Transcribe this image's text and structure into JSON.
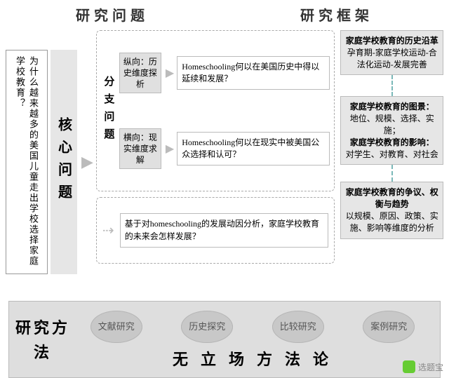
{
  "colors": {
    "grey_bg": "#e6e6e6",
    "border": "#bbbbbb",
    "dash": "#aaaaaa",
    "circle_bg": "#c8c8c8",
    "teal_dash": "#7ab8b8",
    "arrow": "#bbbbbb"
  },
  "header": {
    "left": "研究问题",
    "right": "研究框架"
  },
  "left_question": "为什么越来越多的美国儿童走出学校选择家庭学校教育？",
  "core_label": "核心问题",
  "branch_label": "分支问题",
  "branches": {
    "top": {
      "mini": "纵向：历史维度探析",
      "q": "Homeschooling何以在美国历史中得以延续和发展？"
    },
    "mid": {
      "mini": "横向：现实维度求解",
      "q": "Homeschooling何以在现实中被美国公众选择和认可？"
    },
    "bottom": {
      "q": "基于对homeschooling的发展动因分析，家庭学校教育的未来会怎样发展？"
    }
  },
  "framework": {
    "box1": {
      "title": "家庭学校教育的历史沿革",
      "body": "孕育期-家庭学校运动-合法化运动-发展完善"
    },
    "box2": {
      "title1": "家庭学校教育的图景：",
      "body1": "地位、规模、选择、实施；",
      "title2": "家庭学校教育的影响：",
      "body2": "对学生、对教育、对社会"
    },
    "box3": {
      "title": "家庭学校教育的争议、权衡与趋势",
      "body": "以规模、原因、政策、实施、影响等维度的分析"
    }
  },
  "methods": {
    "label": "研究方法",
    "circles": [
      "文献研究",
      "历史探究",
      "比较研究",
      "案例研究"
    ],
    "bottom": "无立场方法论"
  },
  "watermark": "选题宝"
}
